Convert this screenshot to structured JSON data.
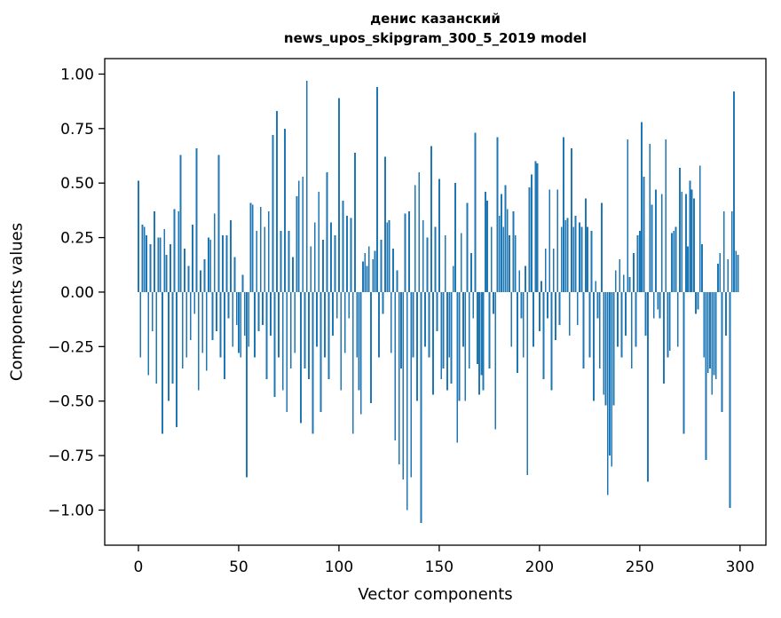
{
  "title": {
    "line1": "денис казанский",
    "line2": "news_upos_skipgram_300_5_2019 model"
  },
  "chart_data": {
    "type": "bar",
    "title": "денис казанский\nnews_upos_skipgram_300_5_2019 model",
    "xlabel": "Vector components",
    "ylabel": "Components values",
    "n_bars": 300,
    "x_start": 0,
    "bar_width": 0.8,
    "bar_color": "#1f77b4",
    "axis_color": "#000000",
    "background_color": "#ffffff",
    "grid": false,
    "legend": null,
    "xlim": [
      -16.8,
      312.9
    ],
    "ylim": [
      -1.161,
      1.071
    ],
    "xticks": [
      0,
      50,
      100,
      150,
      200,
      250,
      300
    ],
    "yticks": [
      {
        "v": 1.0,
        "label": "1.00"
      },
      {
        "v": 0.75,
        "label": "0.75"
      },
      {
        "v": 0.5,
        "label": "0.50"
      },
      {
        "v": 0.25,
        "label": "0.25"
      },
      {
        "v": 0.0,
        "label": "0.00"
      },
      {
        "v": -0.25,
        "label": "−0.25"
      },
      {
        "v": -0.5,
        "label": "−0.50"
      },
      {
        "v": -0.75,
        "label": "−0.75"
      },
      {
        "v": -1.0,
        "label": "−1.00"
      }
    ],
    "values": [
      0.51,
      -0.3,
      0.31,
      0.3,
      0.26,
      -0.38,
      0.22,
      -0.18,
      0.37,
      -0.42,
      0.25,
      0.25,
      -0.65,
      0.29,
      0.17,
      -0.5,
      0.22,
      -0.42,
      0.38,
      -0.62,
      0.37,
      0.63,
      -0.35,
      0.2,
      -0.3,
      0.12,
      -0.22,
      0.31,
      -0.1,
      0.66,
      -0.45,
      0.1,
      -0.28,
      0.15,
      -0.36,
      0.25,
      0.24,
      -0.22,
      0.36,
      -0.18,
      0.63,
      -0.3,
      0.26,
      -0.4,
      0.26,
      -0.12,
      0.33,
      -0.25,
      0.16,
      -0.15,
      -0.28,
      -0.3,
      0.08,
      -0.2,
      -0.85,
      -0.25,
      0.41,
      0.4,
      -0.3,
      0.28,
      -0.18,
      0.39,
      -0.15,
      0.3,
      -0.4,
      0.37,
      -0.2,
      0.72,
      -0.48,
      0.83,
      -0.3,
      0.28,
      -0.45,
      0.75,
      -0.55,
      0.28,
      -0.35,
      0.16,
      -0.28,
      0.44,
      0.51,
      -0.6,
      0.53,
      -0.35,
      0.97,
      -0.4,
      0.21,
      -0.65,
      0.32,
      -0.25,
      0.46,
      -0.55,
      0.24,
      -0.3,
      0.55,
      -0.4,
      0.32,
      -0.2,
      0.26,
      -0.12,
      0.89,
      -0.45,
      0.42,
      -0.28,
      0.35,
      -0.12,
      0.34,
      -0.65,
      0.64,
      -0.3,
      -0.45,
      -0.56,
      0.14,
      0.18,
      0.12,
      0.21,
      -0.51,
      0.15,
      0.19,
      0.94,
      -0.3,
      0.24,
      -0.1,
      0.62,
      0.32,
      0.33,
      -0.28,
      0.2,
      -0.68,
      0.1,
      -0.79,
      -0.35,
      -0.86,
      0.36,
      -1.0,
      0.37,
      -0.85,
      -0.3,
      0.49,
      -0.5,
      0.55,
      -1.06,
      0.33,
      -0.25,
      0.25,
      -0.3,
      0.67,
      -0.47,
      0.3,
      -0.18,
      0.52,
      -0.4,
      -0.35,
      0.26,
      -0.45,
      -0.3,
      -0.42,
      0.12,
      0.5,
      -0.69,
      -0.5,
      0.27,
      -0.25,
      -0.5,
      0.41,
      -0.35,
      0.18,
      -0.12,
      0.73,
      -0.33,
      -0.47,
      -0.38,
      -0.45,
      0.46,
      0.42,
      -0.35,
      0.3,
      -0.1,
      -0.63,
      0.71,
      0.35,
      0.45,
      0.3,
      0.49,
      0.38,
      0.26,
      -0.25,
      0.37,
      0.26,
      -0.37,
      0.1,
      -0.12,
      -0.3,
      0.12,
      -0.84,
      0.48,
      0.54,
      -0.25,
      0.6,
      0.59,
      -0.18,
      0.05,
      -0.4,
      0.2,
      -0.12,
      0.47,
      -0.45,
      0.2,
      -0.22,
      0.47,
      -0.15,
      0.3,
      0.71,
      0.33,
      0.34,
      -0.2,
      0.66,
      0.3,
      0.35,
      -0.15,
      0.32,
      0.3,
      -0.35,
      0.43,
      0.3,
      -0.3,
      0.28,
      -0.5,
      0.05,
      -0.12,
      -0.35,
      0.41,
      -0.47,
      -0.52,
      -0.93,
      -0.75,
      -0.8,
      -0.52,
      0.1,
      -0.25,
      0.15,
      -0.3,
      0.08,
      -0.2,
      0.7,
      0.07,
      -0.35,
      0.18,
      -0.25,
      0.26,
      0.28,
      0.78,
      0.53,
      -0.2,
      -0.87,
      0.68,
      0.4,
      -0.12,
      0.47,
      -0.08,
      -0.12,
      0.45,
      -0.42,
      0.7,
      -0.3,
      -0.27,
      0.27,
      0.28,
      0.3,
      -0.25,
      0.57,
      0.46,
      -0.65,
      0.45,
      0.21,
      0.51,
      0.47,
      0.43,
      -0.1,
      -0.08,
      0.58,
      0.22,
      -0.3,
      -0.77,
      -0.37,
      -0.35,
      -0.47,
      -0.38,
      -0.4,
      0.13,
      0.18,
      -0.55,
      0.37,
      -0.2,
      0.15,
      -0.99,
      0.37,
      0.92,
      0.19,
      0.17
    ]
  }
}
